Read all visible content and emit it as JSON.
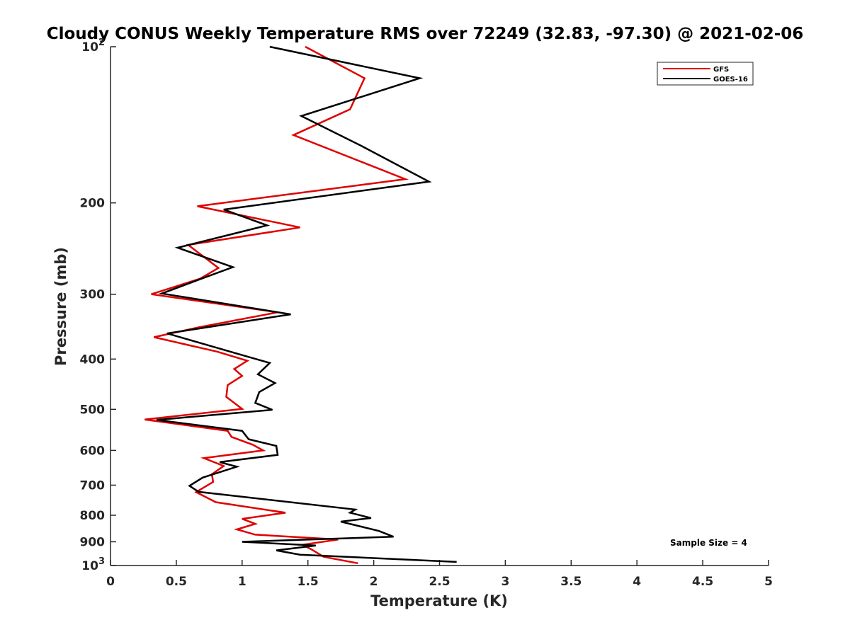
{
  "chart_data": {
    "type": "line",
    "title": "Cloudy CONUS Weekly Temperature RMS over 72249 (32.83, -97.30) @ 2021-02-06",
    "xlabel": "Temperature (K)",
    "ylabel": "Pressure (mb)",
    "xlim": [
      0,
      5
    ],
    "ylim": [
      100,
      1000
    ],
    "y_scale": "log",
    "y_direction": "reversed",
    "grid": false,
    "legend_position": "top-right",
    "x_ticks": [
      0,
      0.5,
      1,
      1.5,
      2,
      2.5,
      3,
      3.5,
      4,
      4.5,
      5
    ],
    "x_tick_labels": [
      "0",
      "0.5",
      "1",
      "1.5",
      "2",
      "2.5",
      "3",
      "3.5",
      "4",
      "4.5",
      "5"
    ],
    "y_ticks": [
      100,
      200,
      300,
      400,
      500,
      600,
      700,
      800,
      900,
      1000
    ],
    "y_tick_labels": [
      {
        "base": "10",
        "exp": "2"
      },
      {
        "base": "200",
        "exp": ""
      },
      {
        "base": "300",
        "exp": ""
      },
      {
        "base": "400",
        "exp": ""
      },
      {
        "base": "500",
        "exp": ""
      },
      {
        "base": "600",
        "exp": ""
      },
      {
        "base": "700",
        "exp": ""
      },
      {
        "base": "800",
        "exp": ""
      },
      {
        "base": "900",
        "exp": ""
      },
      {
        "base": "10",
        "exp": "3"
      }
    ],
    "annotation": "Sample Size = 4",
    "series": [
      {
        "name": "GFS",
        "color": "#e00000",
        "points": [
          [
            1.48,
            100
          ],
          [
            1.93,
            115
          ],
          [
            1.82,
            132
          ],
          [
            1.39,
            148
          ],
          [
            2.24,
            180
          ],
          [
            0.66,
            203
          ],
          [
            1.44,
            223
          ],
          [
            0.59,
            241
          ],
          [
            0.82,
            267
          ],
          [
            0.68,
            280
          ],
          [
            0.31,
            300
          ],
          [
            1.27,
            325
          ],
          [
            0.68,
            347
          ],
          [
            0.33,
            363
          ],
          [
            0.81,
            387
          ],
          [
            1.04,
            403
          ],
          [
            0.94,
            418
          ],
          [
            1.0,
            431
          ],
          [
            0.89,
            449
          ],
          [
            0.88,
            473
          ],
          [
            1.0,
            499
          ],
          [
            0.26,
            523
          ],
          [
            0.89,
            550
          ],
          [
            0.92,
            565
          ],
          [
            1.08,
            585
          ],
          [
            1.16,
            600
          ],
          [
            0.71,
            621
          ],
          [
            0.86,
            643
          ],
          [
            0.77,
            667
          ],
          [
            0.78,
            690
          ],
          [
            0.65,
            722
          ],
          [
            0.8,
            755
          ],
          [
            1.33,
            791
          ],
          [
            1.0,
            813
          ],
          [
            1.1,
            831
          ],
          [
            0.96,
            852
          ],
          [
            1.1,
            872
          ],
          [
            1.73,
            891
          ],
          [
            1.46,
            912
          ],
          [
            1.53,
            932
          ],
          [
            1.62,
            962
          ],
          [
            1.88,
            990
          ]
        ]
      },
      {
        "name": "GOES-16",
        "color": "#000000",
        "points": [
          [
            1.21,
            100
          ],
          [
            2.35,
            115
          ],
          [
            1.45,
            136
          ],
          [
            1.9,
            155
          ],
          [
            2.42,
            182
          ],
          [
            0.86,
            206
          ],
          [
            1.19,
            221
          ],
          [
            0.51,
            244
          ],
          [
            0.93,
            266
          ],
          [
            0.69,
            280
          ],
          [
            0.39,
            299
          ],
          [
            1.37,
            328
          ],
          [
            0.43,
            357
          ],
          [
            0.97,
            391
          ],
          [
            1.21,
            407
          ],
          [
            1.12,
            428
          ],
          [
            1.25,
            445
          ],
          [
            1.13,
            463
          ],
          [
            1.1,
            486
          ],
          [
            1.23,
            501
          ],
          [
            0.35,
            524
          ],
          [
            1.0,
            550
          ],
          [
            1.05,
            571
          ],
          [
            1.26,
            588
          ],
          [
            1.27,
            612
          ],
          [
            0.83,
            632
          ],
          [
            0.96,
            645
          ],
          [
            0.7,
            677
          ],
          [
            0.6,
            702
          ],
          [
            0.67,
            721
          ],
          [
            1.86,
            780
          ],
          [
            1.82,
            791
          ],
          [
            1.98,
            810
          ],
          [
            1.75,
            823
          ],
          [
            2.04,
            858
          ],
          [
            2.15,
            880
          ],
          [
            1.0,
            900
          ],
          [
            1.56,
            915
          ],
          [
            1.26,
            935
          ],
          [
            1.44,
            953
          ],
          [
            2.63,
            984
          ]
        ]
      }
    ]
  }
}
